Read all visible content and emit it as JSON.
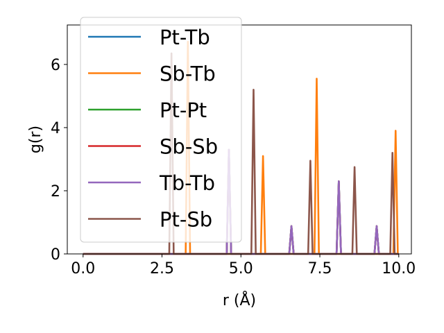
{
  "chart_data": {
    "type": "line",
    "xlabel": "r (Å)",
    "ylabel": "g(r)",
    "xlim": [
      -0.5,
      10.4
    ],
    "ylim": [
      0,
      7.25
    ],
    "xticks": [
      0.0,
      2.5,
      5.0,
      7.5,
      10.0
    ],
    "xtick_labels": [
      "0.0",
      "2.5",
      "5.0",
      "7.5",
      "10.0"
    ],
    "yticks": [
      0,
      2,
      4,
      6
    ],
    "ytick_labels": [
      "0",
      "2",
      "4",
      "6"
    ],
    "grid": false,
    "legend_position": "upper-left",
    "peak_half_width": 0.07,
    "series": [
      {
        "name": "Pt-Tb",
        "color": "#1f77b4",
        "peaks": [
          [
            4.62,
            3.3
          ],
          [
            6.6,
            0.88
          ],
          [
            8.1,
            2.3
          ],
          [
            9.3,
            0.88
          ]
        ]
      },
      {
        "name": "Sb-Tb",
        "color": "#ff7f0e",
        "peaks": [
          [
            3.32,
            6.72
          ],
          [
            5.7,
            3.1
          ],
          [
            7.4,
            5.55
          ],
          [
            9.9,
            3.9
          ]
        ]
      },
      {
        "name": "Pt-Pt",
        "color": "#2ca02c",
        "peaks": [
          [
            4.62,
            3.3
          ],
          [
            6.6,
            0.88
          ],
          [
            8.1,
            2.3
          ],
          [
            9.3,
            0.88
          ]
        ]
      },
      {
        "name": "Sb-Sb",
        "color": "#d62728",
        "peaks": [
          [
            4.62,
            3.3
          ],
          [
            6.6,
            0.88
          ],
          [
            8.1,
            2.3
          ],
          [
            9.3,
            0.88
          ]
        ]
      },
      {
        "name": "Tb-Tb",
        "color": "#9467bd",
        "peaks": [
          [
            4.62,
            3.3
          ],
          [
            6.6,
            0.88
          ],
          [
            8.1,
            2.3
          ],
          [
            9.3,
            0.88
          ]
        ]
      },
      {
        "name": "Pt-Sb",
        "color": "#8c564b",
        "peaks": [
          [
            2.8,
            6.35
          ],
          [
            5.4,
            5.2
          ],
          [
            7.2,
            2.95
          ],
          [
            8.6,
            2.75
          ],
          [
            9.8,
            3.2
          ]
        ]
      }
    ]
  }
}
